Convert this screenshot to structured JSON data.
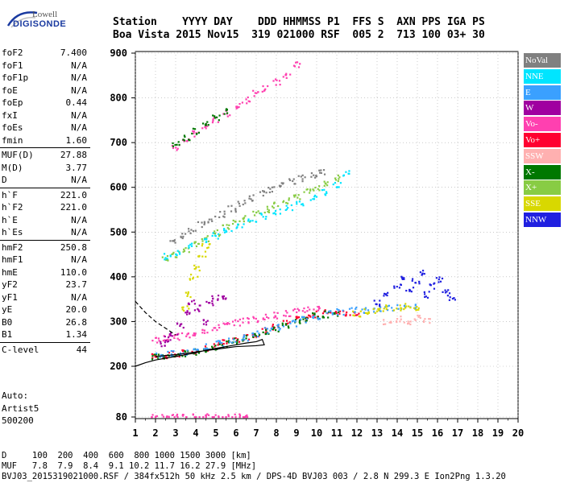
{
  "logo": {
    "line1": "Lowell",
    "line2": "DIGISONDE"
  },
  "header": {
    "line1": "Station    YYYY DAY    DDD HHMMSS P1  FFS S  AXN PPS IGA PS",
    "line2": "Boa Vista 2015 Nov15  319 021000 RSF  005 2  713 100 03+ 30"
  },
  "params": [
    [
      {
        "k": "foF2",
        "v": "7.400"
      },
      {
        "k": "foF1",
        "v": "N/A"
      },
      {
        "k": "foF1p",
        "v": "N/A"
      },
      {
        "k": "foE",
        "v": "N/A"
      },
      {
        "k": "foEp",
        "v": "0.44"
      },
      {
        "k": "fxI",
        "v": "N/A"
      },
      {
        "k": "foEs",
        "v": "N/A"
      },
      {
        "k": "fmin",
        "v": "1.60"
      }
    ],
    [
      {
        "k": "MUF(D)",
        "v": "27.88"
      },
      {
        "k": "M(D)",
        "v": "3.77"
      },
      {
        "k": "D",
        "v": "N/A"
      }
    ],
    [
      {
        "k": "h`F",
        "v": "221.0"
      },
      {
        "k": "h`F2",
        "v": "221.0"
      },
      {
        "k": "h`E",
        "v": "N/A"
      },
      {
        "k": "h`Es",
        "v": "N/A"
      }
    ],
    [
      {
        "k": "hmF2",
        "v": "250.8"
      },
      {
        "k": "hmF1",
        "v": "N/A"
      },
      {
        "k": "hmE",
        "v": "110.0"
      },
      {
        "k": "yF2",
        "v": "23.7"
      },
      {
        "k": "yF1",
        "v": "N/A"
      },
      {
        "k": "yE",
        "v": "20.0"
      },
      {
        "k": "B0",
        "v": "26.8"
      },
      {
        "k": "B1",
        "v": "1.34"
      }
    ],
    [
      {
        "k": "C-level",
        "v": "44"
      }
    ]
  ],
  "auto": {
    "line1": "Auto:",
    "line2": "Artist5",
    "line3": "500200"
  },
  "legend": [
    {
      "label": "NoVal",
      "color": "#808080"
    },
    {
      "label": "NNE",
      "color": "#00e5ff"
    },
    {
      "label": "E",
      "color": "#3aa0ff"
    },
    {
      "label": "W",
      "color": "#a000a0"
    },
    {
      "label": "Vo-",
      "color": "#ff40b0"
    },
    {
      "label": "Vo+",
      "color": "#ff0030"
    },
    {
      "label": "SSW",
      "color": "#ffb0b0"
    },
    {
      "label": "X-",
      "color": "#007800"
    },
    {
      "label": "X+",
      "color": "#88cc44"
    },
    {
      "label": "SSE",
      "color": "#d8d800"
    },
    {
      "label": "NNW",
      "color": "#2020e0"
    }
  ],
  "footer": {
    "line1": "D     100  200  400  600  800 1000 1500 3000 [km]",
    "line2": "MUF   7.8  7.9  8.4  9.1 10.2 11.7 16.2 27.9 [MHz]",
    "line3": "BVJ03_2015319021000.RSF / 384fx512h 50 kHz 2.5 km / DPS-4D BVJ03 003 / 2.8 N 299.3 E Ion2Png 1.3.20"
  },
  "chart_data": {
    "type": "scatter",
    "xlim": [
      1,
      20
    ],
    "ylim": [
      80,
      900
    ],
    "xticks": [
      1,
      2,
      3,
      4,
      5,
      6,
      7,
      8,
      9,
      10,
      11,
      12,
      13,
      14,
      15,
      16,
      17,
      18,
      19,
      20
    ],
    "yticks": [
      80,
      200,
      300,
      400,
      500,
      600,
      700,
      800,
      900
    ],
    "grid": true,
    "series": [
      {
        "color": "#ff0030",
        "x": [
          2.0,
          2.5,
          3.0,
          3.5,
          4.0,
          4.5,
          5.0,
          5.5,
          6.0,
          6.5,
          7.0,
          7.5,
          8.0,
          8.5,
          9.0,
          9.5,
          10.0,
          10.5,
          11.0,
          11.5,
          12.0
        ],
        "y": [
          222,
          224,
          226,
          230,
          234,
          240,
          246,
          252,
          258,
          265,
          272,
          280,
          288,
          296,
          304,
          310,
          316,
          320,
          322,
          320,
          318
        ]
      },
      {
        "color": "#007800",
        "x": [
          2.0,
          2.5,
          3.0,
          3.5,
          4.0,
          4.5,
          5.0,
          5.5,
          6.0,
          6.5,
          7.0,
          7.5,
          8.0,
          8.5,
          9.0,
          9.5,
          10.0,
          10.5,
          11.0
        ],
        "y": [
          220,
          222,
          224,
          228,
          232,
          238,
          244,
          250,
          256,
          262,
          268,
          276,
          284,
          292,
          300,
          306,
          312,
          316,
          318
        ]
      },
      {
        "color": "#ff40b0",
        "x": [
          2.0,
          2.5,
          3.0,
          3.5,
          4.0,
          4.5,
          5.0,
          5.5,
          6.0,
          6.5,
          7.0,
          7.5,
          8.0,
          8.5,
          9.0,
          9.5,
          10.0
        ],
        "y": [
          260,
          262,
          266,
          270,
          274,
          280,
          286,
          292,
          298,
          302,
          306,
          310,
          314,
          318,
          322,
          326,
          330
        ]
      },
      {
        "color": "#3aa0ff",
        "x": [
          2.2,
          2.8,
          3.4,
          4.0,
          4.6,
          5.2,
          5.8,
          6.4,
          7.0,
          7.6,
          8.2,
          8.8,
          9.4,
          10.0,
          10.6,
          11.2,
          11.8,
          12.4,
          13.0,
          13.6,
          14.2,
          14.8
        ],
        "y": [
          225,
          228,
          232,
          237,
          243,
          250,
          257,
          264,
          272,
          280,
          288,
          296,
          304,
          312,
          318,
          322,
          325,
          326,
          328,
          330,
          332,
          334
        ]
      },
      {
        "color": "#a000a0",
        "x": [
          2.3,
          2.6,
          2.9,
          3.2,
          3.5,
          3.8,
          4.1,
          4.4,
          4.7,
          5.0,
          5.3
        ],
        "y": [
          250,
          262,
          274,
          290,
          320,
          345,
          330,
          300,
          340,
          355,
          350
        ]
      },
      {
        "color": "#d8d800",
        "x": [
          3.5,
          3.7,
          3.9,
          4.1,
          4.3,
          4.5,
          12.0,
          12.5,
          13.0,
          13.5,
          14.0,
          14.5,
          15.0
        ],
        "y": [
          330,
          360,
          400,
          420,
          450,
          470,
          318,
          322,
          326,
          330,
          332,
          334,
          330
        ]
      },
      {
        "color": "#2020e0",
        "x": [
          13.0,
          13.5,
          14.0,
          14.3,
          14.6,
          14.9,
          15.2,
          15.5,
          15.8,
          16.1,
          16.4,
          16.7
        ],
        "y": [
          340,
          360,
          380,
          400,
          370,
          390,
          410,
          360,
          380,
          395,
          370,
          355
        ]
      },
      {
        "color": "#ffb0b0",
        "x": [
          13.5,
          14.0,
          14.5,
          15.0,
          15.5
        ],
        "y": [
          300,
          305,
          295,
          310,
          302
        ]
      },
      {
        "color": "#88cc44",
        "x": [
          2.5,
          3.0,
          3.5,
          4.0,
          4.5,
          5.0,
          5.5,
          6.0,
          6.5,
          7.0,
          7.5,
          8.0,
          8.5,
          9.0,
          9.5,
          10.0,
          10.5,
          11.0
        ],
        "y": [
          440,
          450,
          462,
          474,
          486,
          498,
          510,
          520,
          530,
          540,
          550,
          560,
          570,
          580,
          590,
          600,
          610,
          620
        ]
      },
      {
        "color": "#00e5ff",
        "x": [
          2.6,
          3.2,
          3.8,
          4.4,
          5.0,
          5.6,
          6.2,
          6.8,
          7.4,
          8.0,
          8.6,
          9.2,
          9.8,
          10.4,
          11.0,
          11.5
        ],
        "y": [
          445,
          455,
          468,
          480,
          492,
          504,
          516,
          526,
          536,
          546,
          556,
          566,
          576,
          590,
          605,
          630
        ]
      },
      {
        "color": "#808080",
        "x": [
          2.8,
          3.3,
          3.8,
          4.3,
          4.8,
          5.3,
          5.8,
          6.3,
          6.8,
          7.3,
          7.8,
          8.3,
          8.8,
          9.3,
          9.8,
          10.3
        ],
        "y": [
          480,
          492,
          504,
          516,
          528,
          540,
          552,
          564,
          576,
          588,
          596,
          604,
          612,
          620,
          626,
          632
        ]
      },
      {
        "color": "#ff40b0",
        "x": [
          3.0,
          3.5,
          4.0,
          4.5,
          5.0,
          5.5,
          6.0,
          6.5,
          7.0,
          7.5,
          8.0,
          8.5,
          9.0
        ],
        "y": [
          690,
          705,
          720,
          735,
          750,
          765,
          780,
          795,
          810,
          820,
          835,
          850,
          875
        ]
      },
      {
        "color": "#007800",
        "x": [
          3.0,
          3.5,
          4.0,
          4.5,
          5.0,
          5.5
        ],
        "y": [
          695,
          710,
          725,
          740,
          755,
          770
        ]
      },
      {
        "color": "#ff40b0",
        "x": [
          2.0,
          2.5,
          3.0,
          3.5,
          4.0,
          4.5,
          5.0,
          5.5,
          6.0,
          6.5
        ],
        "y": [
          80,
          80,
          80,
          80,
          80,
          80,
          80,
          80,
          80,
          80
        ]
      }
    ],
    "curves": [
      {
        "name": "profile",
        "color": "#000",
        "x": [
          1.0,
          1.5,
          2.0,
          2.5,
          3.0,
          3.5,
          4.0,
          4.5,
          5.0,
          5.5,
          6.0,
          6.5,
          7.0,
          7.3,
          7.4,
          7.0,
          6.0,
          5.0,
          4.0,
          3.0,
          2.0
        ],
        "y": [
          200,
          208,
          214,
          218,
          222,
          226,
          230,
          236,
          240,
          244,
          248,
          252,
          255,
          260,
          248,
          246,
          244,
          238,
          232,
          226,
          222
        ]
      },
      {
        "name": "dashed",
        "color": "#000",
        "dashed": true,
        "x": [
          1.0,
          1.5,
          2.0,
          2.5,
          3.0
        ],
        "y": [
          345,
          320,
          300,
          285,
          270
        ]
      }
    ]
  }
}
